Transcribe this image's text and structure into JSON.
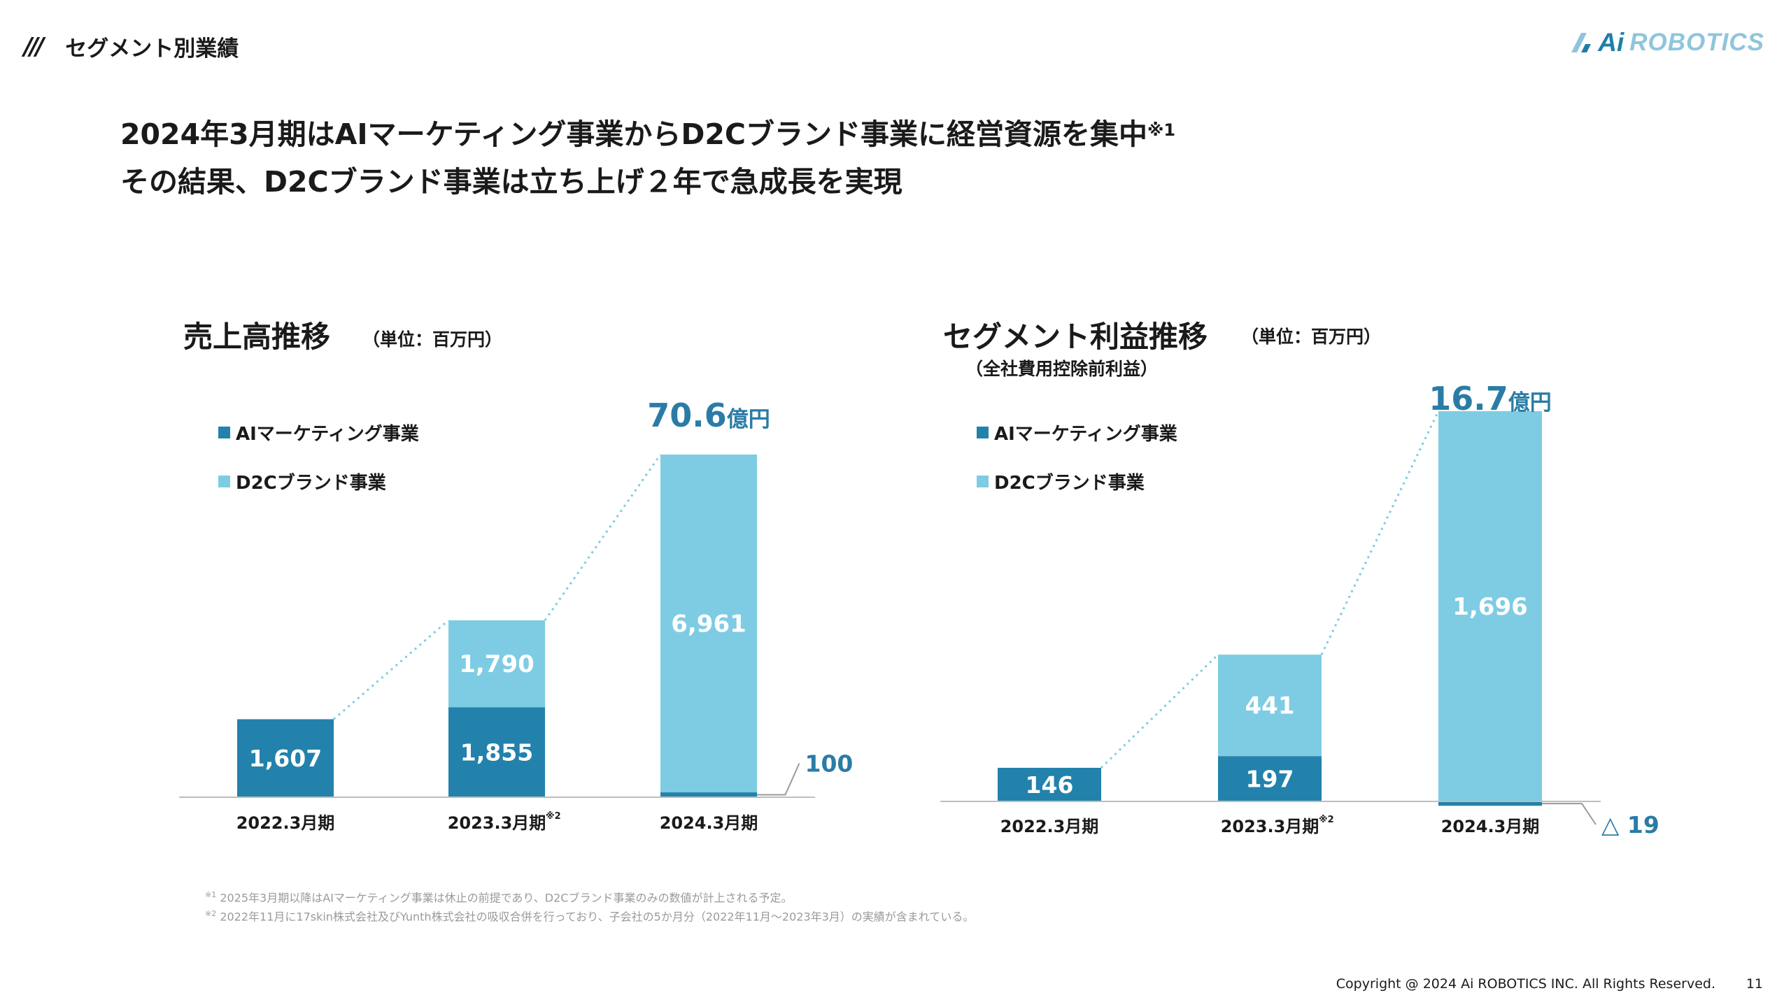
{
  "header": {
    "section_title": "セグメント別業績",
    "logo_ai": "Ai",
    "logo_robotics": "ROBOTICS"
  },
  "headline": {
    "line1": "2024年3月期はAIマーケティング事業からD2Cブランド事業に経営資源を集中",
    "line1_note": "※1",
    "line2": "その結果、D2Cブランド事業は立ち上げ２年で急成長を実現"
  },
  "colors": {
    "ai_marketing": "#2282ab",
    "d2c_brand": "#7ecce3",
    "accent_text": "#2a7ca6",
    "dotted": "#7ecce3"
  },
  "chart_data": [
    {
      "type": "bar",
      "stacked": true,
      "title": "売上高推移",
      "unit": "（単位：百万円）",
      "categories": [
        "2022.3月期",
        "2023.3月期",
        "2024.3月期"
      ],
      "category_notes": [
        "",
        "※2",
        ""
      ],
      "series": [
        {
          "name": "AIマーケティング事業",
          "values": [
            1607,
            1855,
            100
          ],
          "labels": [
            "1,607",
            "1,855",
            "100"
          ]
        },
        {
          "name": "D2Cブランド事業",
          "values": [
            0,
            1790,
            6961
          ],
          "labels": [
            "",
            "1,790",
            "6,961"
          ]
        }
      ],
      "total_callout": {
        "value": "70.6",
        "unit": "億円"
      },
      "ylim": [
        0,
        7061
      ],
      "legend_position": "top-left"
    },
    {
      "type": "bar",
      "stacked": true,
      "title": "セグメント利益推移",
      "subtitle": "（全社費用控除前利益）",
      "unit": "（単位：百万円）",
      "categories": [
        "2022.3月期",
        "2023.3月期",
        "2024.3月期"
      ],
      "category_notes": [
        "",
        "※2",
        ""
      ],
      "series": [
        {
          "name": "AIマーケティング事業",
          "values": [
            146,
            197,
            -19
          ],
          "labels": [
            "146",
            "197",
            "△ 19"
          ]
        },
        {
          "name": "D2Cブランド事業",
          "values": [
            0,
            441,
            1696
          ],
          "labels": [
            "",
            "441",
            "1,696"
          ]
        }
      ],
      "total_callout": {
        "value": "16.7",
        "unit": "億円"
      },
      "ylim": [
        -19,
        1696
      ],
      "legend_position": "top-left"
    }
  ],
  "footnotes": [
    {
      "mark": "※1",
      "text": "2025年3月期以降はAIマーケティング事業は休止の前提であり、D2Cブランド事業のみの数値が計上される予定。"
    },
    {
      "mark": "※2",
      "text": "2022年11月に17skin株式会社及びYunth株式会社の吸収合併を行っており、子会社の5か月分（2022年11月～2023年3月）の実績が含まれている。"
    }
  ],
  "footer": {
    "copyright": "Copyright @ 2024 Ai ROBOTICS INC. All Rights Reserved.",
    "page": "11"
  }
}
